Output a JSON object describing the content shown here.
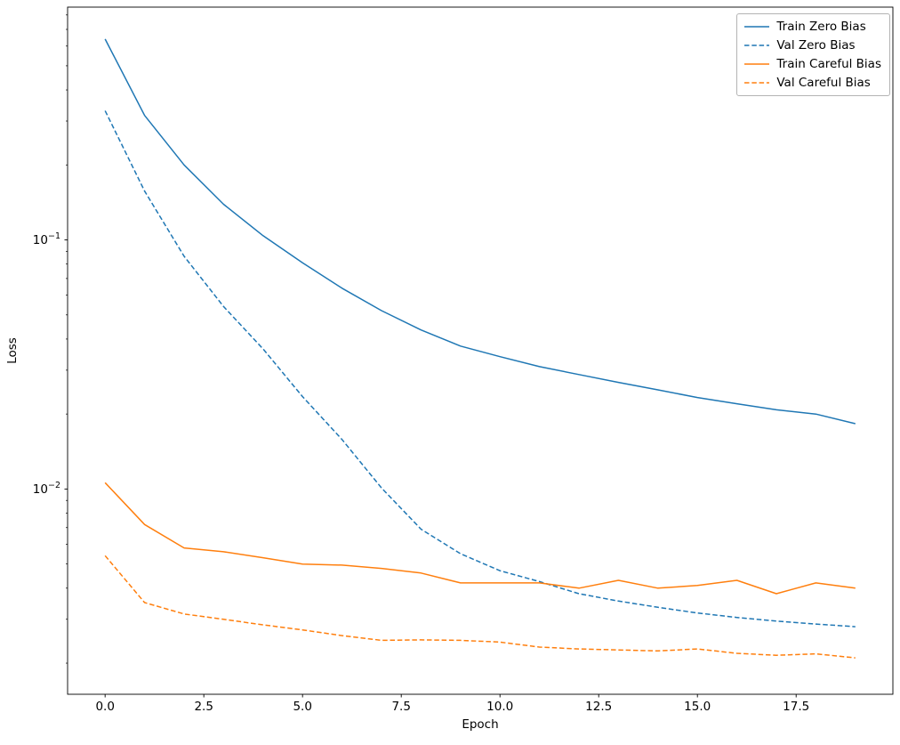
{
  "figure": {
    "background": "#ffffff"
  },
  "chart_data": {
    "type": "line",
    "title": "",
    "xlabel": "Epoch",
    "ylabel": "Loss",
    "yscale": "log",
    "grid": false,
    "legend_position": "upper right",
    "xlim": [
      -0.95,
      19.95
    ],
    "ylim": [
      0.0015,
      0.86
    ],
    "xticks": [
      0,
      2.5,
      5,
      7.5,
      10,
      12.5,
      15,
      17.5
    ],
    "xtick_labels": [
      "0.0",
      "2.5",
      "5.0",
      "7.5",
      "10.0",
      "12.5",
      "15.0",
      "17.5"
    ],
    "yticks": [
      0.1,
      0.01
    ],
    "ytick_labels": [
      "10^-1",
      "10^-2"
    ],
    "x": [
      0,
      1,
      2,
      3,
      4,
      5,
      6,
      7,
      8,
      9,
      10,
      11,
      12,
      13,
      14,
      15,
      16,
      17,
      18,
      19
    ],
    "series": [
      {
        "name": "Train Zero Bias",
        "color": "#1f77b4",
        "style": "solid",
        "values": [
          0.64,
          0.316,
          0.2,
          0.139,
          0.104,
          0.081,
          0.064,
          0.052,
          0.0435,
          0.0375,
          0.034,
          0.031,
          0.0288,
          0.0268,
          0.025,
          0.0233,
          0.022,
          0.0208,
          0.02,
          0.0183
        ]
      },
      {
        "name": "Val Zero Bias",
        "color": "#1f77b4",
        "style": "dashed",
        "values": [
          0.33,
          0.157,
          0.086,
          0.054,
          0.0365,
          0.0235,
          0.0158,
          0.0101,
          0.0069,
          0.0055,
          0.0047,
          0.00425,
          0.0038,
          0.00355,
          0.00335,
          0.00318,
          0.00305,
          0.00295,
          0.00287,
          0.0028
        ]
      },
      {
        "name": "Train Careful Bias",
        "color": "#ff7f0e",
        "style": "solid",
        "values": [
          0.0106,
          0.0072,
          0.0058,
          0.0056,
          0.0053,
          0.005,
          0.00495,
          0.0048,
          0.0046,
          0.0042,
          0.0042,
          0.0042,
          0.004,
          0.0043,
          0.004,
          0.0041,
          0.0043,
          0.0038,
          0.0042,
          0.004
        ]
      },
      {
        "name": "Val Careful Bias",
        "color": "#ff7f0e",
        "style": "dashed",
        "values": [
          0.0054,
          0.0035,
          0.00315,
          0.003,
          0.00285,
          0.00272,
          0.00258,
          0.00247,
          0.00248,
          0.00247,
          0.00243,
          0.00232,
          0.00228,
          0.00226,
          0.00224,
          0.00228,
          0.00219,
          0.00215,
          0.00218,
          0.0021
        ]
      }
    ]
  }
}
